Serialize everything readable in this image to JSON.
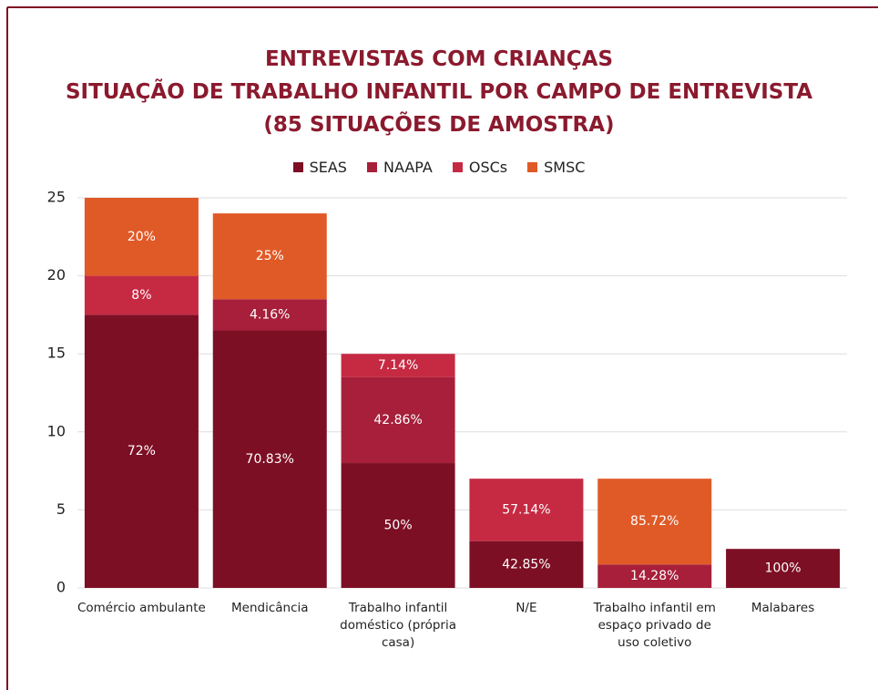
{
  "chart_data": {
    "type": "stacked_bar",
    "title": [
      "ENTREVISTAS COM CRIANÇAS",
      "SITUAÇÃO DE TRABALHO INFANTIL POR CAMPO DE ENTREVISTA",
      "(85 SITUAÇÕES DE AMOSTRA)"
    ],
    "categories": [
      "Comércio ambulante",
      "Mendicância",
      "Trabalho infantil doméstico (própria casa)",
      "N/E",
      "Trabalho infantil em espaço privado de uso coletivo",
      "Malabares"
    ],
    "series": [
      {
        "name": "SEAS",
        "color": "#7d0f24",
        "values": [
          17.5,
          16.5,
          8,
          3,
          null,
          2.5
        ],
        "value_labels": [
          "72%",
          "70.83%",
          "50%",
          "42.85%",
          null,
          "100%"
        ]
      },
      {
        "name": "NAAPA",
        "color": "#a71f3a",
        "values": [
          null,
          2,
          5.5,
          null,
          1.5,
          null
        ],
        "value_labels": [
          null,
          "4.16%",
          "42.86%",
          null,
          "14.28%",
          null
        ]
      },
      {
        "name": "OSCs",
        "color": "#c62a43",
        "values": [
          2.5,
          null,
          1.5,
          4,
          null,
          null
        ],
        "value_labels": [
          "8%",
          null,
          "7.14%",
          "57.14%",
          null,
          null
        ]
      },
      {
        "name": "SMSC",
        "color": "#e05a27",
        "values": [
          5,
          5.5,
          null,
          null,
          5.5,
          null
        ],
        "value_labels": [
          "20%",
          "25%",
          null,
          null,
          "85.72%",
          null
        ]
      }
    ],
    "ylim": [
      0,
      25
    ],
    "yticks": [
      0,
      5,
      10,
      15,
      20,
      25
    ],
    "grid": true,
    "legend": "top"
  }
}
